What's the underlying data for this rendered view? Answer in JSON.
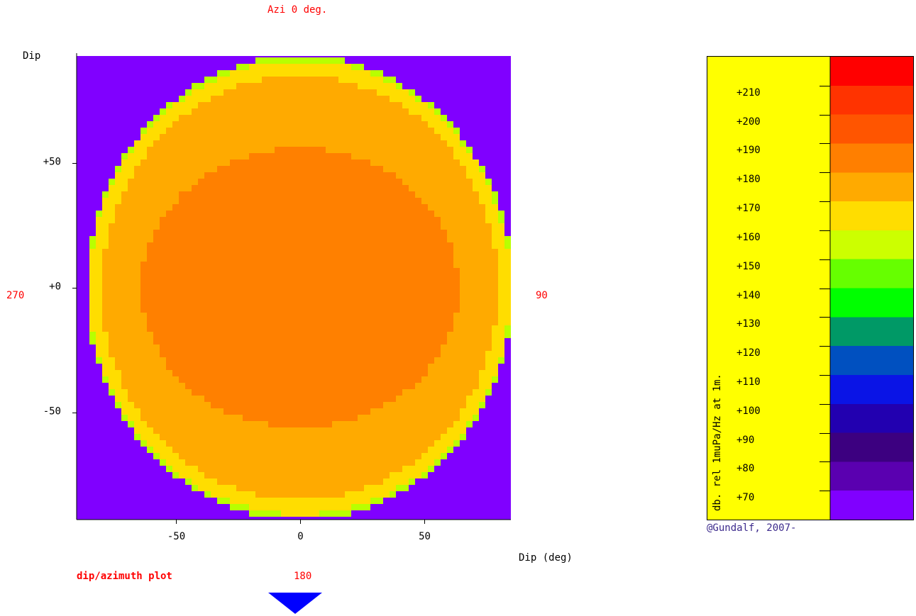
{
  "header": {
    "azimuth_label": "Azi 0 deg."
  },
  "plot": {
    "y_axis_title": "Dip",
    "x_axis_title": "Dip (deg)",
    "plot_mode_label": "dip/azimuth plot",
    "compass": {
      "top": "",
      "left": "270",
      "right": "90",
      "bottom": "180"
    }
  },
  "chart_data": {
    "type": "heatmap",
    "title": "Azi 0 deg.",
    "xlabel": "Dip (deg)",
    "ylabel": "Dip",
    "xlim": [
      -90,
      85
    ],
    "ylim": [
      -93,
      93
    ],
    "x_ticks": [
      -50,
      0,
      50
    ],
    "x_tick_labels": [
      "-50",
      "0",
      "50"
    ],
    "y_ticks": [
      50,
      0,
      -50
    ],
    "y_tick_labels": [
      "+50",
      "+0",
      "-50"
    ],
    "background_color": "#8000ff",
    "contours": [
      {
        "level_db": 170,
        "color": "#b8ff00",
        "center": [
          0,
          0
        ],
        "radius": [
          86,
          93
        ]
      },
      {
        "level_db": 175,
        "color": "#ffdd00",
        "center": [
          0,
          0
        ],
        "radius": [
          85,
          91
        ]
      },
      {
        "level_db": 180,
        "color": "#ffaa00",
        "center": [
          0,
          0
        ],
        "radius": [
          80,
          85
        ]
      },
      {
        "level_db": 185,
        "color": "#ff8000",
        "center": [
          0,
          0
        ],
        "radius": [
          64,
          56
        ]
      }
    ],
    "colorbar": {
      "label": "db. rel 1muPa/Hz at 1m.",
      "tick_labels": [
        "+210",
        "+200",
        "+190",
        "+180",
        "+170",
        "+160",
        "+150",
        "+140",
        "+130",
        "+120",
        "+110",
        "+100",
        "+90",
        "+80",
        "+70"
      ],
      "colors": [
        "#ff0000",
        "#ff3300",
        "#ff5500",
        "#ff7f00",
        "#ffaa00",
        "#ffdd00",
        "#ccff00",
        "#66ff00",
        "#00ff00",
        "#009966",
        "#0050c0",
        "#0a14e6",
        "#2200b0",
        "#3c0080",
        "#5a00b0",
        "#8000ff"
      ]
    }
  },
  "footer": {
    "credit": "@Gundalf, 2007-"
  },
  "icons": {
    "nav_arrow": "triangle-down-icon",
    "nav_arrow_color": "#0000ff"
  }
}
